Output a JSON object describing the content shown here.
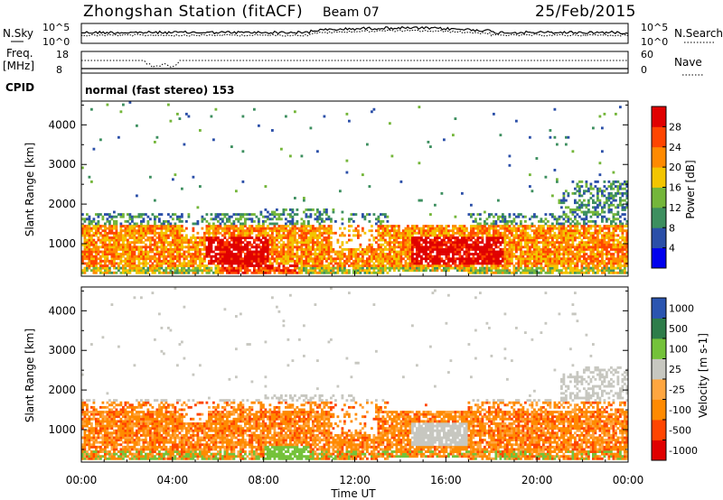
{
  "header": {
    "station": "Zhongshan Station (fitACF)",
    "beam": "Beam 07",
    "date": "25/Feb/2015"
  },
  "top_panels": {
    "nsky_label": "N.Sky",
    "nsearch_label": "N.Search",
    "noise_tick_top": "10^5",
    "noise_tick_bottom": "10^0",
    "freq_label": "Freq.",
    "freq_unit": "[MHz]",
    "freq_tick_top": "18",
    "freq_tick_bottom": "8",
    "nave_label": "Nave",
    "nave_tick_top": "60",
    "nave_tick_bottom": "0",
    "cpid_label": "CPID",
    "cpid_text": "normal (fast stereo) 153"
  },
  "colors": {
    "power_scale": [
      "#0000ee",
      "#2b4fa8",
      "#3d8f5f",
      "#74b63a",
      "#f3c500",
      "#ff8a00",
      "#ff4500",
      "#e00000"
    ],
    "velocity_scale": [
      "#e00000",
      "#ff4500",
      "#ff8a00",
      "#ffa640",
      "#c7c7c0",
      "#74c23a",
      "#2e7d4a",
      "#2b55b0"
    ]
  },
  "chart_data": [
    {
      "type": "heatmap",
      "panel": "power",
      "ylabel": "Slant Range [km]",
      "yticks": [
        "4000",
        "3000",
        "2000",
        "1000"
      ],
      "ylim": [
        180,
        4600
      ],
      "xlabel": "Time UT",
      "xticks": [
        "00:00",
        "04:00",
        "08:00",
        "12:00",
        "16:00",
        "20:00",
        "00:00"
      ],
      "xlim_hours": [
        0,
        24
      ],
      "colorbar_label": "Power [dB]",
      "colorbar_ticks": [
        "28",
        "24",
        "20",
        "16",
        "12",
        "8",
        "4"
      ],
      "colorbar_range": [
        0,
        32
      ]
    },
    {
      "type": "heatmap",
      "panel": "velocity",
      "ylabel": "Slant Range [km]",
      "yticks": [
        "4000",
        "3000",
        "2000",
        "1000"
      ],
      "ylim": [
        180,
        4600
      ],
      "xlabel": "Time UT",
      "xticks": [
        "00:00",
        "04:00",
        "08:00",
        "12:00",
        "16:00",
        "20:00",
        "00:00"
      ],
      "xlim_hours": [
        0,
        24
      ],
      "colorbar_label": "Velocity [m s-1]",
      "colorbar_ticks": [
        "1000",
        "500",
        "100",
        "25",
        "-25",
        "-100",
        "-500",
        "-1000"
      ]
    }
  ]
}
